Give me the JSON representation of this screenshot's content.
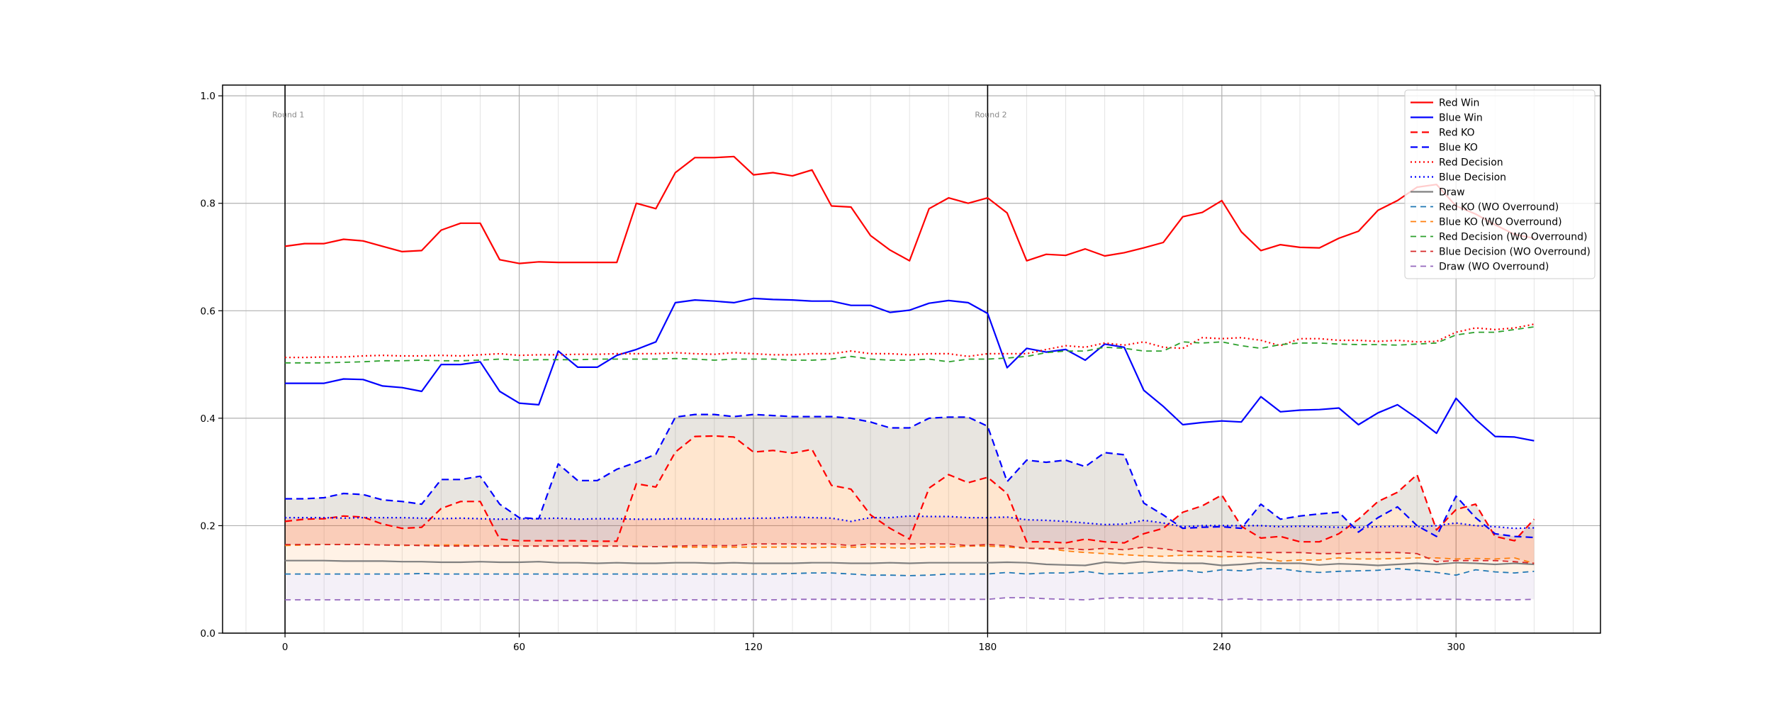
{
  "chart_data": {
    "type": "line",
    "x": [
      0,
      5,
      10,
      15,
      20,
      25,
      30,
      35,
      40,
      45,
      50,
      55,
      60,
      65,
      70,
      75,
      80,
      85,
      90,
      95,
      100,
      105,
      110,
      115,
      120,
      125,
      130,
      135,
      140,
      145,
      150,
      155,
      160,
      165,
      170,
      175,
      180,
      185,
      190,
      195,
      200,
      205,
      210,
      215,
      220,
      225,
      230,
      235,
      240,
      245,
      250,
      255,
      260,
      265,
      270,
      275,
      280,
      285,
      290,
      295,
      300,
      305,
      310,
      315,
      320
    ],
    "xlim": [
      -16,
      337
    ],
    "ylim": [
      0.0,
      1.02
    ],
    "xticks": [
      0,
      60,
      120,
      180,
      240,
      300
    ],
    "yticks": [
      "0.0",
      "0.2",
      "0.4",
      "0.6",
      "0.8",
      "1.0"
    ],
    "minor_vline_step": 10,
    "grid": true,
    "legend_position": "top-right",
    "annotations": [
      {
        "text": "Round 1",
        "x": 0,
        "y": 0.965
      },
      {
        "text": "Round 2",
        "x": 180,
        "y": 0.965
      }
    ],
    "round_lines": [
      0,
      180
    ],
    "series": [
      {
        "name": "Red Win",
        "color": "#ff0000",
        "dash": "solid",
        "width": 2.2,
        "values": [
          0.72,
          0.725,
          0.725,
          0.733,
          0.73,
          0.72,
          0.71,
          0.712,
          0.75,
          0.763,
          0.763,
          0.695,
          0.688,
          0.691,
          0.69,
          0.69,
          0.69,
          0.69,
          0.8,
          0.79,
          0.857,
          0.885,
          0.885,
          0.887,
          0.853,
          0.857,
          0.851,
          0.862,
          0.795,
          0.793,
          0.74,
          0.713,
          0.693,
          0.79,
          0.81,
          0.8,
          0.81,
          0.782,
          0.693,
          0.705,
          0.703,
          0.715,
          0.702,
          0.708,
          0.717,
          0.727,
          0.775,
          0.783,
          0.805,
          0.747,
          0.712,
          0.723,
          0.718,
          0.717,
          0.735,
          0.748,
          0.787,
          0.805,
          0.83,
          0.835,
          0.795,
          0.78,
          0.76,
          0.742,
          0.735
        ]
      },
      {
        "name": "Blue Win",
        "color": "#0000ff",
        "dash": "solid",
        "width": 2.2,
        "values": [
          0.465,
          0.465,
          0.465,
          0.473,
          0.472,
          0.46,
          0.457,
          0.45,
          0.5,
          0.5,
          0.505,
          0.45,
          0.428,
          0.425,
          0.525,
          0.495,
          0.495,
          0.517,
          0.528,
          0.542,
          0.615,
          0.62,
          0.618,
          0.615,
          0.623,
          0.621,
          0.62,
          0.618,
          0.618,
          0.61,
          0.61,
          0.597,
          0.601,
          0.614,
          0.619,
          0.615,
          0.595,
          0.494,
          0.53,
          0.523,
          0.528,
          0.508,
          0.538,
          0.532,
          0.452,
          0.422,
          0.388,
          0.392,
          0.395,
          0.393,
          0.44,
          0.412,
          0.415,
          0.416,
          0.419,
          0.388,
          0.41,
          0.425,
          0.4,
          0.372,
          0.437,
          0.398,
          0.366,
          0.365,
          0.358
        ]
      },
      {
        "name": "Red KO",
        "color": "#ff0000",
        "dash": "10,6",
        "width": 2.2,
        "values": [
          0.208,
          0.212,
          0.213,
          0.218,
          0.216,
          0.203,
          0.195,
          0.197,
          0.232,
          0.245,
          0.245,
          0.175,
          0.172,
          0.172,
          0.172,
          0.172,
          0.171,
          0.171,
          0.278,
          0.272,
          0.337,
          0.366,
          0.367,
          0.365,
          0.337,
          0.34,
          0.335,
          0.342,
          0.275,
          0.268,
          0.22,
          0.195,
          0.175,
          0.27,
          0.295,
          0.28,
          0.29,
          0.26,
          0.17,
          0.17,
          0.168,
          0.175,
          0.17,
          0.168,
          0.185,
          0.195,
          0.225,
          0.237,
          0.257,
          0.199,
          0.177,
          0.18,
          0.17,
          0.17,
          0.185,
          0.212,
          0.245,
          0.262,
          0.295,
          0.192,
          0.23,
          0.24,
          0.18,
          0.172,
          0.212
        ]
      },
      {
        "name": "Blue KO",
        "color": "#0000ff",
        "dash": "10,6",
        "width": 2.2,
        "values": [
          0.25,
          0.25,
          0.252,
          0.26,
          0.258,
          0.248,
          0.245,
          0.24,
          0.286,
          0.286,
          0.292,
          0.24,
          0.215,
          0.213,
          0.315,
          0.284,
          0.284,
          0.305,
          0.318,
          0.333,
          0.402,
          0.407,
          0.407,
          0.403,
          0.407,
          0.405,
          0.403,
          0.403,
          0.403,
          0.4,
          0.393,
          0.382,
          0.382,
          0.4,
          0.402,
          0.402,
          0.385,
          0.282,
          0.322,
          0.318,
          0.322,
          0.31,
          0.336,
          0.332,
          0.242,
          0.22,
          0.195,
          0.197,
          0.198,
          0.195,
          0.24,
          0.212,
          0.218,
          0.222,
          0.225,
          0.188,
          0.215,
          0.235,
          0.2,
          0.18,
          0.255,
          0.215,
          0.185,
          0.18,
          0.178
        ]
      },
      {
        "name": "Red Decision",
        "color": "#ff0000",
        "dash": "2,4",
        "width": 2.2,
        "values": [
          0.513,
          0.513,
          0.514,
          0.514,
          0.516,
          0.517,
          0.516,
          0.516,
          0.517,
          0.516,
          0.518,
          0.52,
          0.517,
          0.518,
          0.518,
          0.519,
          0.519,
          0.52,
          0.52,
          0.52,
          0.522,
          0.52,
          0.519,
          0.522,
          0.52,
          0.518,
          0.518,
          0.52,
          0.52,
          0.525,
          0.52,
          0.52,
          0.518,
          0.52,
          0.52,
          0.515,
          0.52,
          0.52,
          0.52,
          0.528,
          0.535,
          0.532,
          0.54,
          0.536,
          0.542,
          0.532,
          0.53,
          0.55,
          0.548,
          0.55,
          0.545,
          0.535,
          0.548,
          0.548,
          0.545,
          0.545,
          0.543,
          0.545,
          0.542,
          0.543,
          0.56,
          0.568,
          0.565,
          0.568,
          0.575
        ]
      },
      {
        "name": "Blue Decision",
        "color": "#0000ff",
        "dash": "2,4",
        "width": 2.2,
        "values": [
          0.215,
          0.215,
          0.215,
          0.214,
          0.215,
          0.215,
          0.215,
          0.214,
          0.213,
          0.214,
          0.213,
          0.212,
          0.213,
          0.213,
          0.214,
          0.212,
          0.213,
          0.213,
          0.212,
          0.212,
          0.213,
          0.213,
          0.212,
          0.213,
          0.214,
          0.214,
          0.216,
          0.215,
          0.214,
          0.208,
          0.215,
          0.215,
          0.218,
          0.217,
          0.217,
          0.215,
          0.215,
          0.216,
          0.211,
          0.21,
          0.208,
          0.205,
          0.202,
          0.203,
          0.21,
          0.205,
          0.198,
          0.2,
          0.2,
          0.2,
          0.2,
          0.198,
          0.199,
          0.198,
          0.197,
          0.197,
          0.198,
          0.199,
          0.198,
          0.2,
          0.205,
          0.2,
          0.198,
          0.195,
          0.196
        ]
      },
      {
        "name": "Draw",
        "color": "#808080",
        "dash": "solid",
        "width": 2.2,
        "values": [
          0.135,
          0.135,
          0.135,
          0.134,
          0.134,
          0.134,
          0.133,
          0.133,
          0.132,
          0.132,
          0.133,
          0.132,
          0.132,
          0.133,
          0.131,
          0.131,
          0.13,
          0.131,
          0.13,
          0.13,
          0.131,
          0.131,
          0.13,
          0.131,
          0.13,
          0.13,
          0.13,
          0.131,
          0.131,
          0.13,
          0.13,
          0.131,
          0.13,
          0.131,
          0.131,
          0.131,
          0.131,
          0.132,
          0.131,
          0.128,
          0.127,
          0.126,
          0.132,
          0.13,
          0.133,
          0.131,
          0.13,
          0.13,
          0.126,
          0.128,
          0.131,
          0.13,
          0.13,
          0.127,
          0.129,
          0.128,
          0.126,
          0.128,
          0.13,
          0.128,
          0.131,
          0.13,
          0.128,
          0.13,
          0.128
        ]
      },
      {
        "name": "Red KO (WO Overround)",
        "color": "#1f77b4",
        "dash": "8,6",
        "width": 1.8,
        "values": [
          0.11,
          0.11,
          0.11,
          0.11,
          0.11,
          0.11,
          0.11,
          0.111,
          0.11,
          0.11,
          0.11,
          0.11,
          0.11,
          0.11,
          0.11,
          0.11,
          0.11,
          0.11,
          0.11,
          0.11,
          0.11,
          0.11,
          0.11,
          0.11,
          0.11,
          0.11,
          0.111,
          0.112,
          0.112,
          0.11,
          0.108,
          0.108,
          0.107,
          0.108,
          0.11,
          0.11,
          0.11,
          0.113,
          0.11,
          0.112,
          0.112,
          0.115,
          0.11,
          0.111,
          0.112,
          0.115,
          0.117,
          0.113,
          0.118,
          0.116,
          0.12,
          0.12,
          0.115,
          0.113,
          0.115,
          0.116,
          0.117,
          0.12,
          0.117,
          0.113,
          0.108,
          0.118,
          0.114,
          0.112,
          0.115
        ]
      },
      {
        "name": "Blue KO (WO Overround)",
        "color": "#ff7f0e",
        "dash": "8,6",
        "width": 1.8,
        "values": [
          0.163,
          0.164,
          0.165,
          0.165,
          0.165,
          0.164,
          0.163,
          0.164,
          0.164,
          0.164,
          0.163,
          0.163,
          0.162,
          0.162,
          0.162,
          0.162,
          0.162,
          0.162,
          0.162,
          0.161,
          0.16,
          0.16,
          0.16,
          0.16,
          0.16,
          0.16,
          0.16,
          0.159,
          0.16,
          0.16,
          0.16,
          0.159,
          0.158,
          0.16,
          0.16,
          0.162,
          0.162,
          0.16,
          0.158,
          0.158,
          0.153,
          0.15,
          0.148,
          0.146,
          0.144,
          0.143,
          0.145,
          0.144,
          0.142,
          0.143,
          0.14,
          0.134,
          0.136,
          0.136,
          0.14,
          0.138,
          0.138,
          0.139,
          0.14,
          0.14,
          0.138,
          0.139,
          0.138,
          0.14,
          0.13
        ]
      },
      {
        "name": "Red Decision (WO Overround)",
        "color": "#2ca02c",
        "dash": "8,6",
        "width": 1.8,
        "values": [
          0.503,
          0.503,
          0.503,
          0.504,
          0.505,
          0.507,
          0.507,
          0.508,
          0.507,
          0.507,
          0.508,
          0.51,
          0.508,
          0.509,
          0.509,
          0.509,
          0.51,
          0.51,
          0.51,
          0.51,
          0.511,
          0.51,
          0.508,
          0.51,
          0.51,
          0.51,
          0.508,
          0.508,
          0.51,
          0.515,
          0.51,
          0.508,
          0.508,
          0.51,
          0.505,
          0.51,
          0.51,
          0.512,
          0.515,
          0.522,
          0.525,
          0.525,
          0.532,
          0.53,
          0.525,
          0.525,
          0.542,
          0.54,
          0.542,
          0.535,
          0.53,
          0.537,
          0.54,
          0.54,
          0.538,
          0.537,
          0.537,
          0.536,
          0.538,
          0.54,
          0.555,
          0.56,
          0.56,
          0.565,
          0.57
        ]
      },
      {
        "name": "Blue Decision (WO Overround)",
        "color": "#d62728",
        "dash": "8,6",
        "width": 1.8,
        "values": [
          0.165,
          0.165,
          0.165,
          0.165,
          0.165,
          0.164,
          0.164,
          0.163,
          0.162,
          0.162,
          0.162,
          0.162,
          0.162,
          0.162,
          0.162,
          0.162,
          0.162,
          0.162,
          0.161,
          0.161,
          0.162,
          0.163,
          0.163,
          0.163,
          0.166,
          0.166,
          0.166,
          0.166,
          0.166,
          0.163,
          0.166,
          0.166,
          0.166,
          0.166,
          0.166,
          0.163,
          0.165,
          0.163,
          0.158,
          0.157,
          0.158,
          0.155,
          0.158,
          0.155,
          0.16,
          0.157,
          0.152,
          0.152,
          0.152,
          0.15,
          0.15,
          0.15,
          0.15,
          0.148,
          0.148,
          0.15,
          0.15,
          0.15,
          0.148,
          0.133,
          0.135,
          0.135,
          0.135,
          0.133,
          0.13
        ]
      },
      {
        "name": "Draw (WO Overround)",
        "color": "#9467bd",
        "dash": "8,6",
        "width": 1.8,
        "values": [
          0.062,
          0.062,
          0.062,
          0.062,
          0.062,
          0.062,
          0.062,
          0.062,
          0.062,
          0.062,
          0.062,
          0.062,
          0.062,
          0.061,
          0.061,
          0.061,
          0.061,
          0.061,
          0.061,
          0.061,
          0.062,
          0.062,
          0.062,
          0.062,
          0.062,
          0.062,
          0.063,
          0.063,
          0.063,
          0.063,
          0.063,
          0.063,
          0.063,
          0.063,
          0.063,
          0.063,
          0.063,
          0.066,
          0.066,
          0.064,
          0.063,
          0.062,
          0.065,
          0.066,
          0.065,
          0.065,
          0.065,
          0.065,
          0.062,
          0.064,
          0.062,
          0.062,
          0.062,
          0.062,
          0.062,
          0.062,
          0.062,
          0.062,
          0.063,
          0.063,
          0.063,
          0.062,
          0.062,
          0.062,
          0.063
        ]
      }
    ],
    "fills": [
      {
        "between": [
          "Red KO",
          "Red KO (WO Overround)"
        ],
        "color": "#ff7f0e",
        "opacity": 0.1
      },
      {
        "between": [
          "Blue KO",
          "Blue KO (WO Overround)"
        ],
        "color": "#ff7f0e",
        "opacity": 0.1
      },
      {
        "between": [
          "Blue Decision",
          "Blue Decision (WO Overround)"
        ],
        "color": "#d62728",
        "opacity": 0.13
      },
      {
        "between": [
          "Red KO (WO Overround)",
          "Draw (WO Overround)"
        ],
        "color": "#9467bd",
        "opacity": 0.1
      },
      {
        "between": [
          "Blue KO",
          "Red KO"
        ],
        "color": "#1f77b4",
        "opacity": 0.1
      }
    ]
  }
}
